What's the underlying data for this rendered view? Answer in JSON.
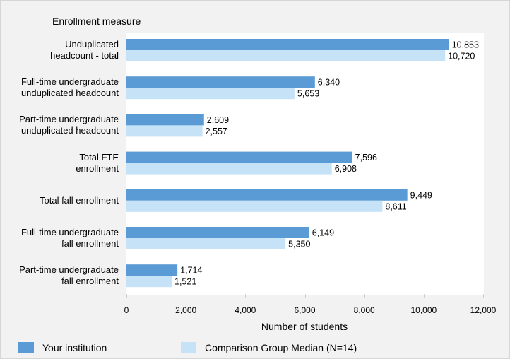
{
  "chart_data": {
    "type": "bar",
    "orientation": "horizontal",
    "ylabel": "Enrollment measure",
    "xlabel": "Number of students",
    "xlim": [
      0,
      12000
    ],
    "xticks": [
      "0",
      "2,000",
      "4,000",
      "6,000",
      "8,000",
      "10,000",
      "12,000"
    ],
    "xtick_values": [
      0,
      2000,
      4000,
      6000,
      8000,
      10000,
      12000
    ],
    "categories": [
      [
        "Unduplicated",
        "headcount - total"
      ],
      [
        "Full-time undergraduate",
        "unduplicated headcount"
      ],
      [
        "Part-time undergraduate",
        "unduplicated headcount"
      ],
      [
        "Total FTE",
        "enrollment"
      ],
      [
        "Total fall enrollment"
      ],
      [
        "Full-time undergraduate",
        "fall enrollment"
      ],
      [
        "Part-time undergraduate",
        "fall enrollment"
      ]
    ],
    "series": [
      {
        "name": "Your institution",
        "color": "#5b9bd5",
        "values": [
          10853,
          6340,
          2609,
          7596,
          9449,
          6149,
          1714
        ],
        "labels": [
          "10,853",
          "6,340",
          "2,609",
          "7,596",
          "9,449",
          "6,149",
          "1,714"
        ]
      },
      {
        "name": "Comparison Group Median (N=14)",
        "color": "#c6e2f7",
        "values": [
          10720,
          5653,
          2557,
          6908,
          8611,
          5350,
          1521
        ],
        "labels": [
          "10,720",
          "5,653",
          "2,557",
          "6,908",
          "8,611",
          "5,350",
          "1,521"
        ]
      }
    ],
    "grid": false,
    "legend_position": "bottom"
  }
}
